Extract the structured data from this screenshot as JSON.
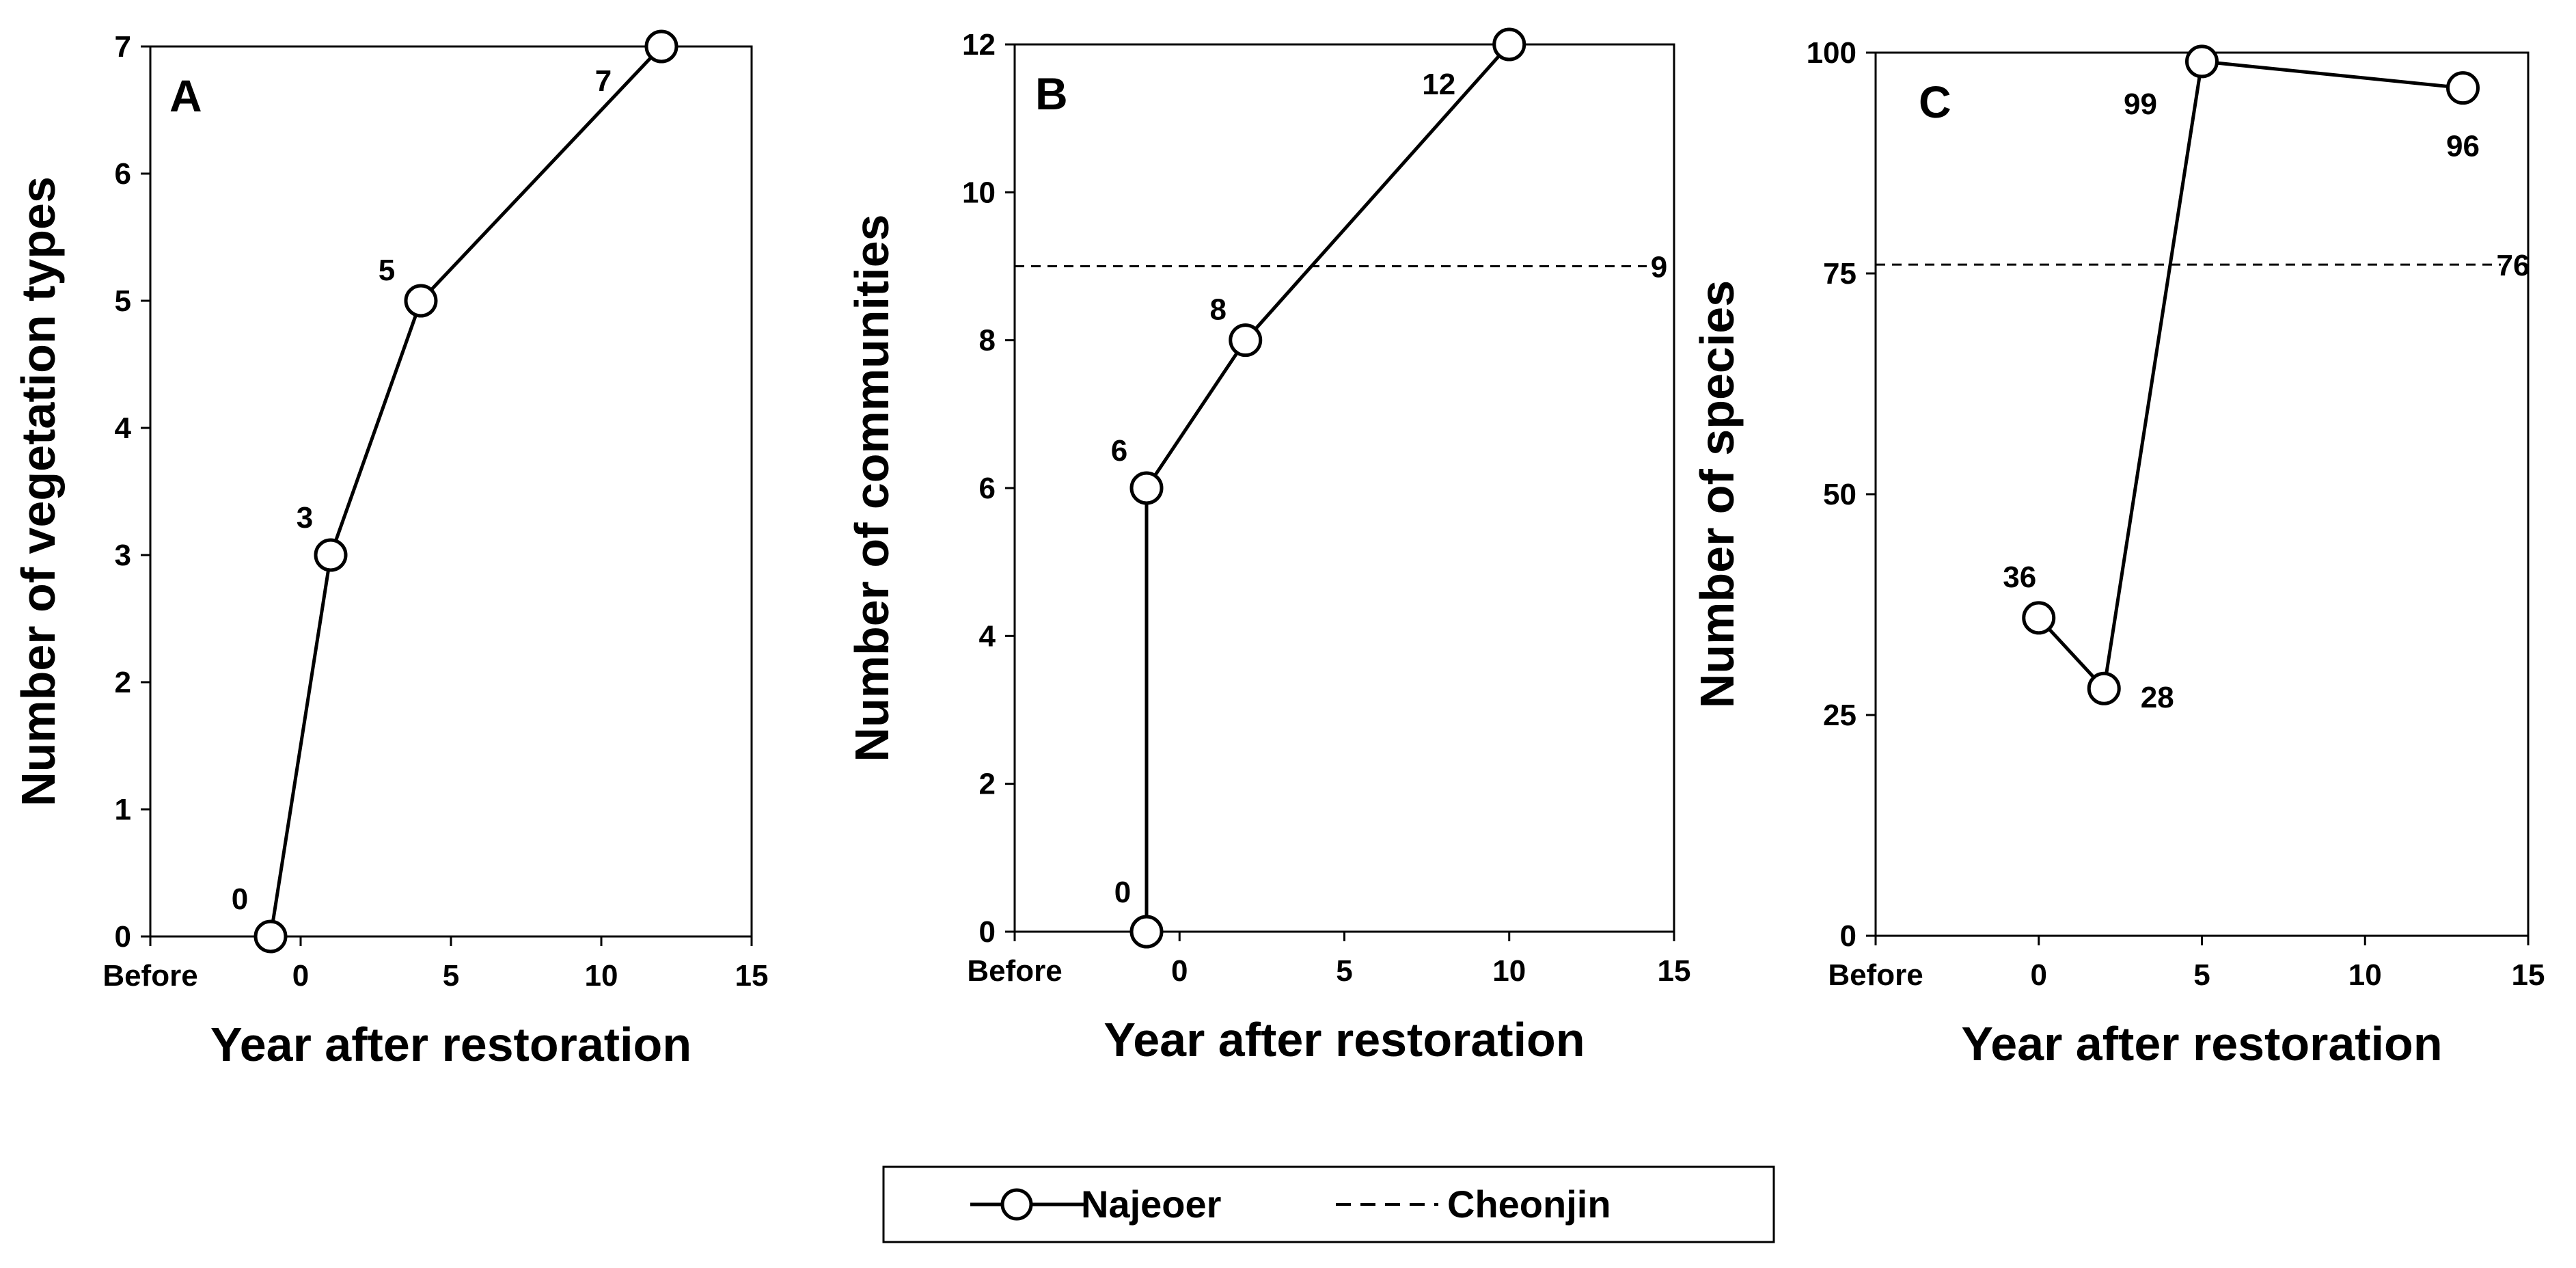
{
  "chart_data": [
    {
      "type": "line",
      "panel": "A",
      "xlabel": "Year after restoration",
      "ylabel": "Number of vegetation types",
      "xlim": [
        -5,
        15
      ],
      "ylim": [
        0,
        7
      ],
      "xticks": [
        "Before",
        "0",
        "5",
        "10",
        "15"
      ],
      "yticks": [
        "0",
        "1",
        "2",
        "3",
        "4",
        "5",
        "6",
        "7"
      ],
      "series": [
        {
          "name": "Najeoer",
          "style": "solid-open-circle",
          "x": [
            -1,
            1,
            4,
            12
          ],
          "y": [
            0,
            3,
            5,
            7
          ],
          "labels": [
            "0",
            "3",
            "5",
            "7"
          ]
        }
      ]
    },
    {
      "type": "line",
      "panel": "B",
      "xlabel": "Year after restoration",
      "ylabel": "Number of communities",
      "xlim": [
        -5,
        15
      ],
      "ylim": [
        0,
        12
      ],
      "xticks": [
        "Before",
        "0",
        "5",
        "10",
        "15"
      ],
      "yticks": [
        "0",
        "2",
        "4",
        "6",
        "8",
        "10",
        "12"
      ],
      "series": [
        {
          "name": "Najeoer",
          "style": "solid-open-circle",
          "x": [
            -1,
            -1,
            2,
            10
          ],
          "y": [
            0,
            6,
            8,
            12
          ],
          "labels": [
            "0",
            "6",
            "8",
            "12"
          ]
        },
        {
          "name": "Cheonjin",
          "style": "dashed",
          "value": 9,
          "label": "9"
        }
      ]
    },
    {
      "type": "line",
      "panel": "C",
      "xlabel": "Year after restoration",
      "ylabel": "Number of species",
      "xlim": [
        -5,
        15
      ],
      "ylim": [
        0,
        100
      ],
      "xticks": [
        "Before",
        "0",
        "5",
        "10",
        "15"
      ],
      "yticks": [
        "0",
        "25",
        "50",
        "75",
        "100"
      ],
      "series": [
        {
          "name": "Najeoer",
          "style": "solid-open-circle",
          "x": [
            0,
            2,
            5,
            13
          ],
          "y": [
            36,
            28,
            99,
            96
          ],
          "labels": [
            "36",
            "28",
            "99",
            "96"
          ]
        },
        {
          "name": "Cheonjin",
          "style": "dashed",
          "value": 76,
          "label": "76"
        }
      ]
    }
  ],
  "legend": {
    "items": [
      {
        "name": "Najeoer",
        "style": "solid-open-circle"
      },
      {
        "name": "Cheonjin",
        "style": "dashed"
      }
    ]
  }
}
